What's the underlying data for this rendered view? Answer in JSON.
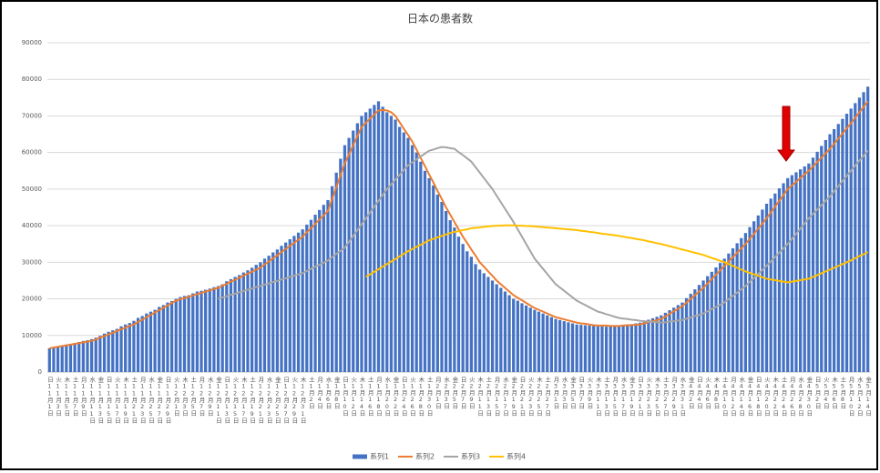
{
  "chart_data": {
    "type": "bar",
    "title": "日本の患者数",
    "categories": [
      "日11月1日",
      null,
      "火11月3日",
      null,
      "木11月5日",
      null,
      "土11月7日",
      null,
      "月11月9日",
      null,
      "水11月11日",
      null,
      "金11月13日",
      null,
      "日11月15日",
      null,
      "火11月17日",
      null,
      "木11月19日",
      null,
      "土11月21日",
      null,
      "月11月23日",
      null,
      "水11月25日",
      null,
      "金11月27日",
      null,
      "日11月29日",
      null,
      "火12月1日",
      null,
      "木12月3日",
      null,
      "土12月5日",
      null,
      "月12月7日",
      null,
      "水12月9日",
      null,
      "金12月11日",
      null,
      "日12月13日",
      null,
      "火12月15日",
      null,
      "木12月17日",
      null,
      "土12月19日",
      null,
      "月12月21日",
      null,
      "水12月23日",
      null,
      "金12月25日",
      null,
      "日12月27日",
      null,
      "火12月29日",
      null,
      "木12月31日",
      null,
      "土1月2日",
      null,
      "月1月4日",
      null,
      "水1月6日",
      null,
      "金1月8日",
      null,
      "日1月10日",
      null,
      "火1月12日",
      null,
      "木1月14日",
      null,
      "土1月16日",
      null,
      "月1月18日",
      null,
      "水1月20日",
      null,
      "金1月22日",
      null,
      "日1月24日",
      null,
      "火1月26日",
      null,
      "木1月28日",
      null,
      "土1月30日",
      null,
      "月2月1日",
      null,
      "水2月3日",
      null,
      "金2月5日",
      null,
      "日2月7日",
      null,
      "火2月9日",
      null,
      "木2月11日",
      null,
      "土2月13日",
      null,
      "月2月15日",
      null,
      "水2月17日",
      null,
      "金2月19日",
      null,
      "日2月21日",
      null,
      "火2月23日",
      null,
      "木2月25日",
      null,
      "土2月27日",
      null,
      "月3月1日",
      null,
      "水3月3日",
      null,
      "金3月5日",
      null,
      "日3月7日",
      null,
      "火3月9日",
      null,
      "木3月11日",
      null,
      "土3月13日",
      null,
      "月3月15日",
      null,
      "水3月17日",
      null,
      "金3月19日",
      null,
      "日3月21日",
      null,
      "火3月23日",
      null,
      "木3月25日",
      null,
      "土3月27日",
      null,
      "月3月29日",
      null,
      "水3月31日",
      null,
      "金4月2日",
      null,
      "日4月4日",
      null,
      "火4月6日",
      null,
      "木4月8日",
      null,
      "土4月10日",
      null,
      "月4月12日",
      null,
      "水4月14日",
      null,
      "金4月16日",
      null,
      "日4月18日",
      null,
      "火4月20日",
      null,
      "木4月22日",
      null,
      "土4月24日",
      null,
      "月4月26日",
      null,
      "水4月28日",
      null,
      "金4月30日",
      null,
      "日5月2日",
      null,
      "火5月4日",
      null,
      "木5月6日",
      null,
      "土5月8日",
      null,
      "月5月10日",
      null,
      "水5月12日",
      null,
      "金5月14日"
    ],
    "series": [
      {
        "name": "系列1",
        "type": "bar",
        "color": "#4472c4",
        "values": [
          6500,
          6700,
          6900,
          7200,
          7500,
          7700,
          7900,
          8200,
          8500,
          8700,
          9000,
          9400,
          9900,
          10500,
          11000,
          11400,
          11800,
          12500,
          13000,
          13400,
          14000,
          14800,
          15300,
          16000,
          16500,
          17000,
          17800,
          18300,
          19000,
          19400,
          20000,
          20500,
          20800,
          21000,
          21500,
          22000,
          22200,
          22500,
          22800,
          23200,
          23500,
          24000,
          24800,
          25400,
          26000,
          26500,
          27200,
          27800,
          28500,
          29300,
          30000,
          31000,
          31800,
          32700,
          33500,
          34500,
          35400,
          36300,
          37200,
          38100,
          39000,
          40300,
          41600,
          43000,
          44300,
          45700,
          47000,
          50800,
          54500,
          58300,
          62000,
          64000,
          66000,
          68000,
          70000,
          71000,
          72000,
          73000,
          74000,
          72500,
          71000,
          70000,
          69000,
          67000,
          65500,
          64000,
          62000,
          60000,
          57500,
          55000,
          53000,
          51000,
          48500,
          46500,
          44000,
          41500,
          39500,
          37000,
          35000,
          33000,
          31500,
          29500,
          28000,
          27000,
          26000,
          25000,
          24000,
          23000,
          22000,
          21000,
          20000,
          19500,
          18800,
          18200,
          17600,
          17000,
          16500,
          16000,
          15500,
          15000,
          14500,
          14200,
          13900,
          13600,
          13300,
          13000,
          12900,
          12800,
          12700,
          12600,
          12500,
          12500,
          12400,
          12500,
          12500,
          12500,
          12700,
          12900,
          13100,
          13300,
          13500,
          13900,
          14300,
          14700,
          15100,
          15500,
          16200,
          16900,
          17600,
          18300,
          19000,
          20200,
          21400,
          22600,
          23800,
          25000,
          26200,
          27400,
          28600,
          29800,
          31000,
          32400,
          33800,
          35200,
          36600,
          38000,
          39600,
          41200,
          42800,
          44400,
          46000,
          47400,
          48800,
          50200,
          51600,
          53000,
          53800,
          54600,
          55400,
          56200,
          57000,
          58600,
          60200,
          61800,
          63400,
          65000,
          66400,
          67800,
          69200,
          70600,
          72000,
          73500,
          75000,
          76500,
          78000
        ]
      },
      {
        "name": "系列2",
        "type": "line",
        "color": "#ed7d31",
        "values": [
          6500,
          6700,
          6900,
          7100,
          7300,
          7500,
          7700,
          7900,
          8100,
          8300,
          8500,
          8900,
          9400,
          9800,
          10300,
          10700,
          11200,
          11700,
          12100,
          12600,
          13000,
          13700,
          14300,
          15000,
          15600,
          16300,
          16900,
          17600,
          18200,
          18900,
          19500,
          19900,
          20200,
          20600,
          20900,
          21300,
          21600,
          22000,
          22300,
          22700,
          23000,
          23600,
          24100,
          24700,
          25200,
          25800,
          26300,
          26900,
          27400,
          28000,
          28500,
          29400,
          30200,
          31100,
          31900,
          32800,
          33600,
          34500,
          35300,
          36200,
          37000,
          38200,
          39300,
          40500,
          41700,
          42800,
          44000,
          47300,
          50500,
          53800,
          57000,
          59500,
          62000,
          64500,
          67000,
          68100,
          69300,
          70400,
          71500,
          71600,
          71500,
          71000,
          70000,
          68300,
          66500,
          64800,
          63000,
          60800,
          58500,
          56300,
          54000,
          51800,
          49500,
          47300,
          45000,
          43000,
          41000,
          39000,
          37000,
          35300,
          33500,
          31800,
          30000,
          28800,
          27500,
          26300,
          25000,
          24000,
          23000,
          22000,
          21000,
          20300,
          19600,
          18900,
          18200,
          17500,
          17000,
          16500,
          16000,
          15500,
          15000,
          14700,
          14400,
          14100,
          13800,
          13500,
          13300,
          13200,
          13000,
          12800,
          12700,
          12700,
          12700,
          12600,
          12600,
          12600,
          12700,
          12800,
          12800,
          12900,
          13000,
          13300,
          13600,
          13900,
          14200,
          14500,
          15200,
          15900,
          16600,
          17300,
          18000,
          19000,
          20000,
          21000,
          22000,
          23000,
          24200,
          25400,
          26600,
          27800,
          29000,
          30200,
          31400,
          32600,
          33800,
          35000,
          36400,
          37800,
          39200,
          40600,
          42000,
          43600,
          45200,
          46800,
          48400,
          50000,
          51000,
          52000,
          53000,
          54000,
          55000,
          56200,
          57400,
          58600,
          59800,
          61000,
          62400,
          63800,
          65200,
          66600,
          68000,
          69500,
          71000,
          72500,
          74000
        ]
      },
      {
        "name": "系列3",
        "type": "line",
        "color": "#a5a5a5",
        "values": [
          null,
          null,
          null,
          null,
          null,
          null,
          null,
          null,
          null,
          null,
          null,
          null,
          null,
          null,
          null,
          null,
          null,
          null,
          null,
          null,
          null,
          null,
          null,
          null,
          null,
          null,
          null,
          null,
          null,
          null,
          null,
          null,
          null,
          null,
          null,
          null,
          null,
          null,
          null,
          null,
          20000,
          20400,
          20700,
          21100,
          21400,
          21800,
          22100,
          22500,
          22800,
          23200,
          23500,
          23900,
          24200,
          24600,
          24900,
          25300,
          25600,
          26000,
          26300,
          26700,
          27000,
          27600,
          28200,
          28800,
          29300,
          29900,
          30500,
          31400,
          32300,
          33100,
          34000,
          35600,
          37200,
          38800,
          40400,
          42000,
          43600,
          45200,
          46800,
          48400,
          50000,
          51300,
          52600,
          53900,
          55200,
          56500,
          57300,
          58100,
          58900,
          59700,
          60500,
          60800,
          61200,
          61500,
          61400,
          61200,
          61000,
          60100,
          59300,
          58400,
          57500,
          56000,
          54500,
          53000,
          51500,
          50000,
          48200,
          46400,
          44600,
          42800,
          41000,
          39000,
          37000,
          35000,
          33000,
          31000,
          29600,
          28200,
          26800,
          25400,
          24000,
          23100,
          22200,
          21300,
          20400,
          19500,
          18900,
          18300,
          17700,
          17100,
          16500,
          16200,
          15800,
          15500,
          15100,
          14800,
          14600,
          14500,
          14300,
          14200,
          14000,
          13900,
          13800,
          13700,
          13600,
          13500,
          13600,
          13800,
          13900,
          14100,
          14200,
          14600,
          14900,
          15300,
          15600,
          16000,
          16600,
          17200,
          17800,
          18400,
          19000,
          19900,
          20800,
          21700,
          22600,
          23500,
          24600,
          25700,
          26800,
          27900,
          29000,
          30200,
          31400,
          32600,
          33800,
          35000,
          36400,
          37800,
          39200,
          40600,
          42000,
          43200,
          44400,
          45600,
          46800,
          48000,
          49400,
          50800,
          52200,
          53600,
          55000,
          56400,
          57800,
          59100,
          60500
        ]
      },
      {
        "name": "系列4",
        "type": "line",
        "color": "#ffc000",
        "values": [
          null,
          null,
          null,
          null,
          null,
          null,
          null,
          null,
          null,
          null,
          null,
          null,
          null,
          null,
          null,
          null,
          null,
          null,
          null,
          null,
          null,
          null,
          null,
          null,
          null,
          null,
          null,
          null,
          null,
          null,
          null,
          null,
          null,
          null,
          null,
          null,
          null,
          null,
          null,
          null,
          null,
          null,
          null,
          null,
          null,
          null,
          null,
          null,
          null,
          null,
          null,
          null,
          null,
          null,
          null,
          null,
          null,
          null,
          null,
          null,
          null,
          null,
          null,
          null,
          null,
          null,
          null,
          null,
          null,
          null,
          null,
          null,
          null,
          null,
          null,
          26000,
          26700,
          27400,
          28100,
          28800,
          29500,
          30200,
          30900,
          31600,
          32300,
          33000,
          33600,
          34200,
          34800,
          35400,
          36000,
          36400,
          36800,
          37200,
          37600,
          38000,
          38300,
          38500,
          38800,
          39000,
          39300,
          39400,
          39500,
          39700,
          39800,
          39900,
          40000,
          40000,
          40100,
          40100,
          40100,
          40000,
          40000,
          39900,
          39900,
          39800,
          39700,
          39600,
          39500,
          39400,
          39300,
          39200,
          39100,
          39000,
          38900,
          38800,
          38600,
          38500,
          38300,
          38200,
          38000,
          37800,
          37700,
          37500,
          37400,
          37200,
          37000,
          36800,
          36600,
          36400,
          36200,
          36000,
          35700,
          35500,
          35200,
          35000,
          34700,
          34400,
          34100,
          33800,
          33500,
          33200,
          32900,
          32600,
          32300,
          32000,
          31600,
          31200,
          30800,
          30400,
          30000,
          29500,
          29000,
          28500,
          28000,
          27500,
          27100,
          26700,
          26300,
          25900,
          25500,
          25300,
          25100,
          24900,
          24700,
          24500,
          24700,
          24900,
          25100,
          25300,
          25500,
          26000,
          26500,
          27000,
          27500,
          28000,
          28500,
          29000,
          29500,
          30000,
          30500,
          31100,
          31700,
          32200,
          32800
        ]
      }
    ],
    "ylim": [
      0,
      90000
    ],
    "yticks": [
      0,
      10000,
      20000,
      30000,
      40000,
      50000,
      60000,
      70000,
      80000,
      90000
    ],
    "grid": true,
    "legend": "bottom"
  }
}
